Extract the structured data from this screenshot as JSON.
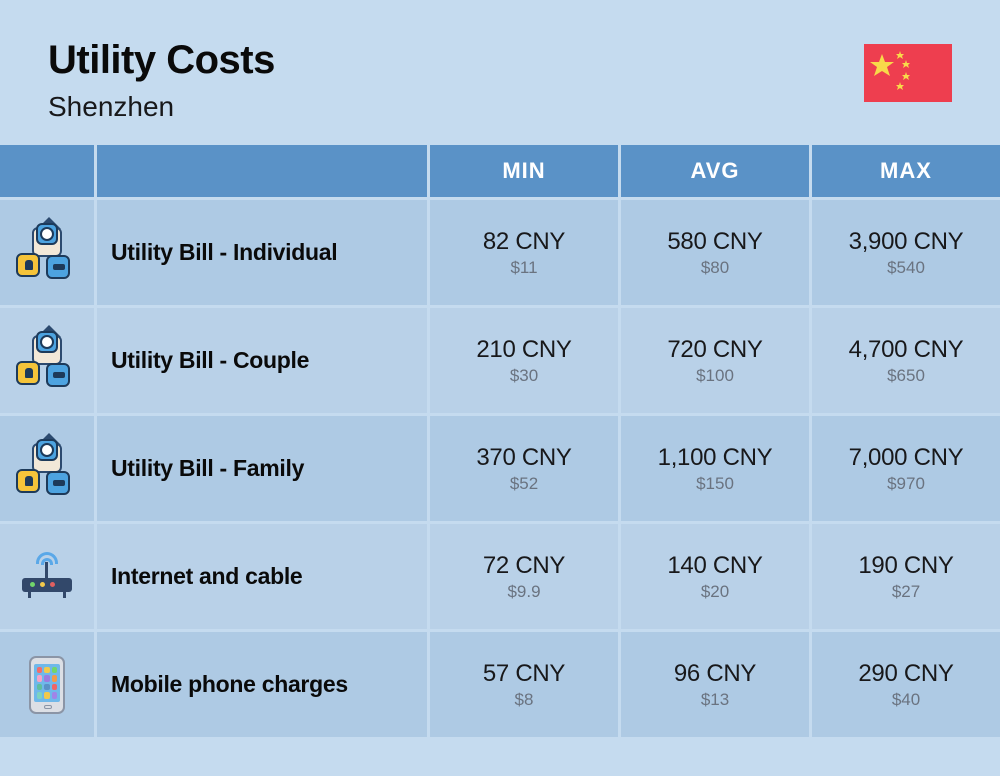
{
  "header": {
    "title": "Utility Costs",
    "subtitle": "Shenzhen"
  },
  "flag": {
    "bg_color": "#ee3e4f",
    "star_color": "#f8d94a",
    "width": 88,
    "height": 58
  },
  "columns": {
    "min": "MIN",
    "avg": "AVG",
    "max": "MAX"
  },
  "colors": {
    "page_bg": "#c5dbef",
    "header_bg": "#5a92c7",
    "header_text": "#ffffff",
    "row_bg": "#aecae4",
    "row_alt_bg": "#b9d1e8",
    "gap": "#c5dbef",
    "primary_text": "#18181a",
    "secondary_text": "#6a7380",
    "title_text": "#0a0a0a"
  },
  "typography": {
    "title_fontsize": 40,
    "subtitle_fontsize": 28,
    "header_fontsize": 22,
    "label_fontsize": 23,
    "primary_fontsize": 24,
    "secondary_fontsize": 17
  },
  "rows": [
    {
      "icon": "utility",
      "label": "Utility Bill - Individual",
      "min": {
        "primary": "82 CNY",
        "secondary": "$11"
      },
      "avg": {
        "primary": "580 CNY",
        "secondary": "$80"
      },
      "max": {
        "primary": "3,900 CNY",
        "secondary": "$540"
      }
    },
    {
      "icon": "utility",
      "label": "Utility Bill - Couple",
      "min": {
        "primary": "210 CNY",
        "secondary": "$30"
      },
      "avg": {
        "primary": "720 CNY",
        "secondary": "$100"
      },
      "max": {
        "primary": "4,700 CNY",
        "secondary": "$650"
      }
    },
    {
      "icon": "utility",
      "label": "Utility Bill - Family",
      "min": {
        "primary": "370 CNY",
        "secondary": "$52"
      },
      "avg": {
        "primary": "1,100 CNY",
        "secondary": "$150"
      },
      "max": {
        "primary": "7,000 CNY",
        "secondary": "$970"
      }
    },
    {
      "icon": "router",
      "label": "Internet and cable",
      "min": {
        "primary": "72 CNY",
        "secondary": "$9.9"
      },
      "avg": {
        "primary": "140 CNY",
        "secondary": "$20"
      },
      "max": {
        "primary": "190 CNY",
        "secondary": "$27"
      }
    },
    {
      "icon": "phone",
      "label": "Mobile phone charges",
      "min": {
        "primary": "57 CNY",
        "secondary": "$8"
      },
      "avg": {
        "primary": "96 CNY",
        "secondary": "$13"
      },
      "max": {
        "primary": "290 CNY",
        "secondary": "$40"
      }
    }
  ]
}
